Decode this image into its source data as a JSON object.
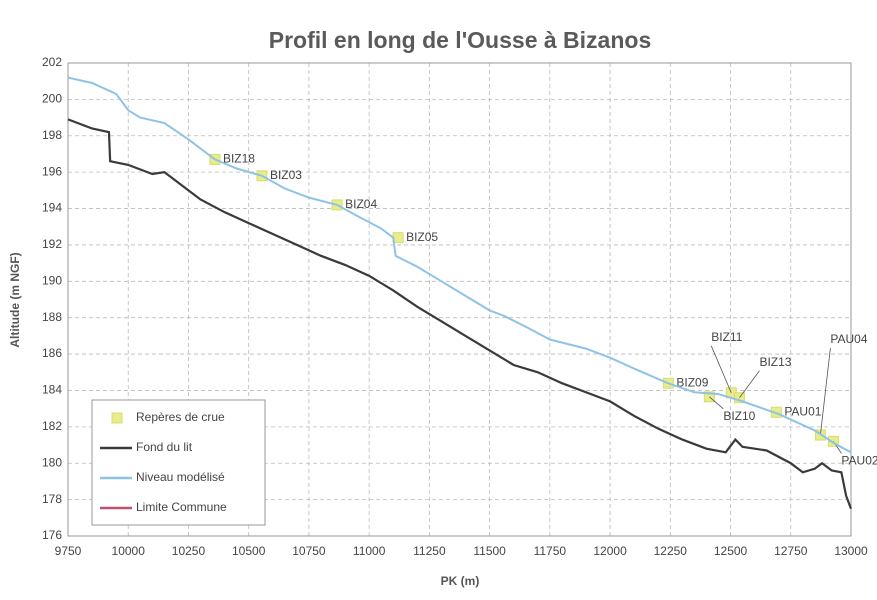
{
  "chart_data": {
    "type": "line",
    "title": "Profil en long de l'Ousse à Bizanos",
    "x_label": "PK (m)",
    "y_label": "Altitude (m NGF)",
    "xlim": [
      9750,
      13000
    ],
    "xticks": [
      9750,
      10000,
      10250,
      10500,
      10750,
      11000,
      11250,
      11500,
      11750,
      12000,
      12250,
      12500,
      12750,
      13000
    ],
    "ylim": [
      176,
      202
    ],
    "yticks": [
      176,
      178,
      180,
      182,
      184,
      186,
      188,
      190,
      192,
      194,
      196,
      198,
      200,
      202
    ],
    "grid": true,
    "legend": "lower left",
    "series": [
      {
        "name": "Repères de crue",
        "type": "scatter",
        "color": "#e8ec8a",
        "x": [
          10360,
          10555,
          10867,
          11120,
          12242,
          12412,
          12503,
          12537,
          12690,
          12873,
          12927
        ],
        "values": [
          196.7,
          195.8,
          194.2,
          192.4,
          184.4,
          183.65,
          183.87,
          183.6,
          182.8,
          181.55,
          181.2
        ],
        "labels": [
          "BIZ18",
          "BIZ03",
          "BIZ04",
          "BIZ05",
          "BIZ09",
          "BIZ10",
          "BIZ11",
          "BIZ13",
          "PAU01",
          "PAU04",
          "PAU02"
        ]
      },
      {
        "name": "Fond du lit",
        "type": "line",
        "color": "#3a3a3a",
        "x": [
          9750,
          9850,
          9920,
          9925,
          10000,
          10100,
          10150,
          10200,
          10300,
          10400,
          10500,
          10600,
          10700,
          10800,
          10900,
          11000,
          11100,
          11200,
          11300,
          11400,
          11500,
          11600,
          11700,
          11800,
          11900,
          12000,
          12100,
          12200,
          12300,
          12400,
          12480,
          12520,
          12550,
          12650,
          12750,
          12800,
          12850,
          12880,
          12920,
          12960,
          12980,
          13000
        ],
        "values": [
          198.9,
          198.4,
          198.2,
          196.6,
          196.4,
          195.9,
          196.0,
          195.5,
          194.5,
          193.8,
          193.2,
          192.6,
          192.0,
          191.4,
          190.9,
          190.3,
          189.5,
          188.6,
          187.8,
          187.0,
          186.2,
          185.4,
          185.0,
          184.4,
          183.9,
          183.4,
          182.6,
          181.9,
          181.3,
          180.8,
          180.6,
          181.3,
          180.9,
          180.7,
          180.0,
          179.5,
          179.7,
          180.0,
          179.6,
          179.5,
          178.2,
          177.5
        ]
      },
      {
        "name": "Niveau modélisé",
        "type": "line",
        "color": "#8ec3e6",
        "x": [
          9750,
          9850,
          9950,
          10000,
          10050,
          10150,
          10250,
          10360,
          10450,
          10555,
          10650,
          10750,
          10867,
          10950,
          11050,
          11100,
          11110,
          11200,
          11300,
          11400,
          11500,
          11560,
          11650,
          11750,
          11900,
          12000,
          12100,
          12240,
          12350,
          12450,
          12550,
          12700,
          12850,
          12930,
          13000
        ],
        "values": [
          201.2,
          200.9,
          200.3,
          199.4,
          199.0,
          198.7,
          197.8,
          196.7,
          196.2,
          195.8,
          195.1,
          194.6,
          194.2,
          193.6,
          192.9,
          192.4,
          191.4,
          190.8,
          190.0,
          189.2,
          188.4,
          188.1,
          187.5,
          186.8,
          186.3,
          185.8,
          185.2,
          184.4,
          183.9,
          183.8,
          183.4,
          182.7,
          181.8,
          181.1,
          180.6
        ]
      },
      {
        "name": "Limite Commune",
        "type": "line",
        "color": "#c0506e",
        "x": [],
        "values": []
      }
    ]
  }
}
